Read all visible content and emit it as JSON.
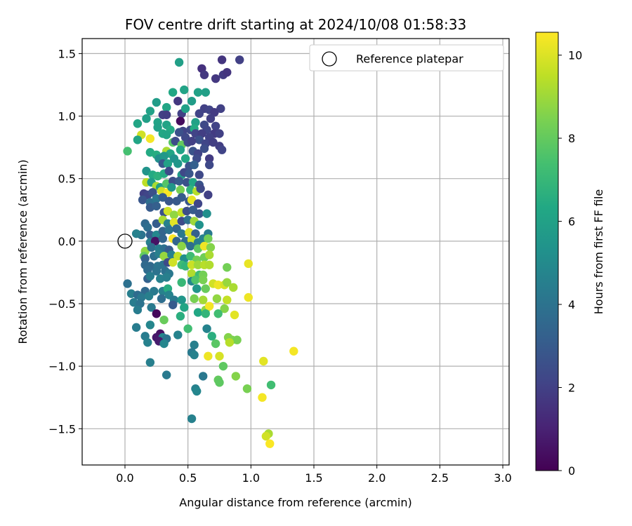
{
  "chart_data": {
    "type": "scatter",
    "title": "FOV centre drift starting at 2024/10/08 01:58:33",
    "xlabel": "Angular distance from reference (arcmin)",
    "ylabel": "Rotation from reference (arcmin)",
    "xlim": [
      -0.34,
      3.05
    ],
    "ylim": [
      -1.79,
      1.62
    ],
    "x_ticks": [
      0.0,
      0.5,
      1.0,
      1.5,
      2.0,
      2.5,
      3.0
    ],
    "x_tick_labels": [
      "0.0",
      "0.5",
      "1.0",
      "1.5",
      "2.0",
      "2.5",
      "3.0"
    ],
    "y_ticks": [
      -1.5,
      -1.0,
      -0.5,
      0.0,
      0.5,
      1.0,
      1.5
    ],
    "y_tick_labels": [
      "−1.5",
      "−1.0",
      "−0.5",
      "0.0",
      "0.5",
      "1.0",
      "1.5"
    ],
    "grid": true,
    "legend": {
      "position": "top-right",
      "entries": [
        "Reference platepar"
      ]
    },
    "reference_point": {
      "x": 0.0,
      "y": 0.0,
      "label": "Reference platepar"
    },
    "colorbar": {
      "label": "Hours from first FF file",
      "colormap": "viridis",
      "range": [
        0,
        10.55
      ],
      "ticks": [
        0,
        2,
        4,
        6,
        8,
        10
      ],
      "tick_labels": [
        "0",
        "2",
        "4",
        "6",
        "8",
        "10"
      ]
    },
    "points": [
      [
        0.43,
        1.43,
        5.9
      ],
      [
        0.77,
        1.45,
        1.6
      ],
      [
        0.91,
        1.45,
        2.0
      ],
      [
        0.61,
        1.38,
        1.5
      ],
      [
        0.63,
        1.33,
        1.7
      ],
      [
        0.78,
        1.33,
        1.8
      ],
      [
        0.81,
        1.35,
        1.6
      ],
      [
        0.72,
        1.3,
        1.7
      ],
      [
        0.47,
        1.21,
        6.1
      ],
      [
        0.38,
        1.19,
        6.3
      ],
      [
        0.58,
        1.19,
        6.0
      ],
      [
        0.64,
        1.19,
        5.9
      ],
      [
        0.25,
        1.11,
        5.8
      ],
      [
        0.42,
        1.12,
        1.7
      ],
      [
        0.53,
        1.12,
        5.8
      ],
      [
        0.33,
        1.07,
        6.2
      ],
      [
        0.2,
        1.04,
        6.0
      ],
      [
        0.3,
        1.01,
        2.0
      ],
      [
        0.33,
        1.01,
        1.9
      ],
      [
        0.45,
        1.02,
        2.0
      ],
      [
        0.48,
        1.06,
        6.0
      ],
      [
        0.63,
        1.06,
        2.0
      ],
      [
        0.67,
        1.05,
        2.1
      ],
      [
        0.76,
        1.06,
        2.0
      ],
      [
        0.71,
        1.03,
        1.8
      ],
      [
        0.17,
        0.98,
        5.9
      ],
      [
        0.59,
        1.02,
        2.1
      ],
      [
        0.68,
        0.98,
        1.9
      ],
      [
        0.26,
        0.95,
        6.1
      ],
      [
        0.1,
        0.94,
        6.2
      ],
      [
        0.26,
        0.91,
        6.0
      ],
      [
        0.33,
        0.93,
        6.1
      ],
      [
        0.44,
        0.96,
        0.3
      ],
      [
        0.56,
        0.95,
        6.0
      ],
      [
        0.63,
        0.93,
        2.3
      ],
      [
        0.72,
        0.92,
        2.1
      ],
      [
        0.36,
        0.89,
        6.4
      ],
      [
        0.46,
        0.88,
        2.1
      ],
      [
        0.52,
        0.89,
        2.3
      ],
      [
        0.55,
        0.9,
        6.4
      ],
      [
        0.65,
        0.89,
        2.2
      ],
      [
        0.71,
        0.86,
        1.8
      ],
      [
        0.75,
        0.86,
        2.0
      ],
      [
        0.3,
        0.86,
        6.3
      ],
      [
        0.33,
        0.85,
        6.2
      ],
      [
        0.43,
        0.87,
        2.6
      ],
      [
        0.56,
        0.86,
        2.1
      ],
      [
        0.61,
        0.86,
        1.9
      ],
      [
        0.13,
        0.85,
        9.8
      ],
      [
        0.2,
        0.82,
        10.4
      ],
      [
        0.1,
        0.81,
        6.2
      ],
      [
        0.48,
        0.83,
        2.3
      ],
      [
        0.59,
        0.81,
        2.6
      ],
      [
        0.67,
        0.83,
        2.0
      ],
      [
        0.38,
        0.79,
        7.8
      ],
      [
        0.4,
        0.8,
        2.4
      ],
      [
        0.45,
        0.77,
        8.0
      ],
      [
        0.5,
        0.79,
        2.4
      ],
      [
        0.53,
        0.8,
        2.0
      ],
      [
        0.64,
        0.78,
        2.2
      ],
      [
        0.7,
        0.79,
        1.9
      ],
      [
        0.75,
        0.76,
        1.9
      ],
      [
        0.77,
        0.73,
        2.1
      ],
      [
        0.02,
        0.72,
        7.4
      ],
      [
        0.2,
        0.71,
        6.4
      ],
      [
        0.25,
        0.69,
        6.5
      ],
      [
        0.33,
        0.72,
        9.2
      ],
      [
        0.36,
        0.7,
        6.2
      ],
      [
        0.44,
        0.73,
        6.1
      ],
      [
        0.54,
        0.72,
        2.7
      ],
      [
        0.58,
        0.7,
        2.1
      ],
      [
        0.63,
        0.74,
        2.5
      ],
      [
        0.27,
        0.66,
        5.2
      ],
      [
        0.31,
        0.68,
        5.6
      ],
      [
        0.39,
        0.66,
        5.3
      ],
      [
        0.48,
        0.66,
        6.3
      ],
      [
        0.57,
        0.66,
        2.4
      ],
      [
        0.67,
        0.66,
        1.8
      ],
      [
        0.3,
        0.62,
        2.9
      ],
      [
        0.34,
        0.62,
        6.0
      ],
      [
        0.42,
        0.62,
        5.5
      ],
      [
        0.51,
        0.6,
        2.6
      ],
      [
        0.55,
        0.61,
        3.2
      ],
      [
        0.67,
        0.61,
        2.3
      ],
      [
        0.17,
        0.56,
        5.4
      ],
      [
        0.22,
        0.53,
        6.4
      ],
      [
        0.26,
        0.52,
        6.7
      ],
      [
        0.31,
        0.54,
        6.4
      ],
      [
        0.35,
        0.56,
        2.4
      ],
      [
        0.45,
        0.53,
        5.7
      ],
      [
        0.47,
        0.55,
        2.3
      ],
      [
        0.51,
        0.54,
        2.8
      ],
      [
        0.59,
        0.53,
        2.3
      ],
      [
        0.17,
        0.47,
        9.5
      ],
      [
        0.21,
        0.47,
        5.8
      ],
      [
        0.25,
        0.44,
        9.2
      ],
      [
        0.28,
        0.43,
        5.9
      ],
      [
        0.33,
        0.46,
        7.7
      ],
      [
        0.38,
        0.48,
        2.5
      ],
      [
        0.43,
        0.48,
        3.0
      ],
      [
        0.49,
        0.47,
        2.6
      ],
      [
        0.54,
        0.47,
        6.2
      ],
      [
        0.59,
        0.45,
        2.7
      ],
      [
        0.15,
        0.38,
        2.0
      ],
      [
        0.18,
        0.37,
        2.2
      ],
      [
        0.22,
        0.39,
        2.6
      ],
      [
        0.29,
        0.4,
        9.8
      ],
      [
        0.34,
        0.39,
        10.5
      ],
      [
        0.37,
        0.43,
        5.5
      ],
      [
        0.44,
        0.41,
        8.4
      ],
      [
        0.52,
        0.41,
        6.8
      ],
      [
        0.57,
        0.4,
        9.4
      ],
      [
        0.6,
        0.42,
        2.3
      ],
      [
        0.66,
        0.37,
        2.0
      ],
      [
        0.14,
        0.33,
        2.8
      ],
      [
        0.2,
        0.31,
        3.8
      ],
      [
        0.25,
        0.34,
        4.1
      ],
      [
        0.3,
        0.35,
        3.1
      ],
      [
        0.35,
        0.32,
        2.8
      ],
      [
        0.41,
        0.32,
        2.9
      ],
      [
        0.45,
        0.35,
        3.0
      ],
      [
        0.51,
        0.32,
        2.8
      ],
      [
        0.53,
        0.33,
        10.2
      ],
      [
        0.58,
        0.3,
        2.2
      ],
      [
        0.2,
        0.27,
        3.0
      ],
      [
        0.25,
        0.28,
        3.2
      ],
      [
        0.31,
        0.23,
        2.6
      ],
      [
        0.34,
        0.24,
        9.8
      ],
      [
        0.39,
        0.21,
        8.8
      ],
      [
        0.45,
        0.23,
        9.6
      ],
      [
        0.49,
        0.24,
        2.5
      ],
      [
        0.54,
        0.25,
        3.0
      ],
      [
        0.59,
        0.22,
        2.8
      ],
      [
        0.65,
        0.22,
        5.2
      ],
      [
        0.16,
        0.14,
        3.6
      ],
      [
        0.18,
        0.11,
        3.8
      ],
      [
        0.25,
        0.14,
        3.1
      ],
      [
        0.3,
        0.17,
        9.2
      ],
      [
        0.34,
        0.14,
        4.6
      ],
      [
        0.39,
        0.15,
        10.1
      ],
      [
        0.45,
        0.16,
        2.4
      ],
      [
        0.5,
        0.17,
        3.9
      ],
      [
        0.55,
        0.16,
        9.0
      ],
      [
        0.59,
        0.13,
        5.3
      ],
      [
        0.13,
        0.05,
        4.0
      ],
      [
        0.2,
        0.05,
        3.2
      ],
      [
        0.25,
        0.05,
        4.9
      ],
      [
        0.3,
        0.08,
        3.4
      ],
      [
        0.35,
        0.09,
        4.0
      ],
      [
        0.41,
        0.1,
        3.5
      ],
      [
        0.45,
        0.06,
        4.2
      ],
      [
        0.51,
        0.07,
        10.0
      ],
      [
        0.56,
        0.06,
        3.2
      ],
      [
        0.66,
        0.06,
        4.3
      ],
      [
        0.09,
        0.06,
        4.6
      ],
      [
        0.2,
        -0.01,
        4.5
      ],
      [
        0.24,
        0.0,
        0.5
      ],
      [
        0.3,
        0.02,
        3.4
      ],
      [
        0.38,
        0.02,
        10.5
      ],
      [
        0.41,
        0.0,
        3.4
      ],
      [
        0.48,
        0.0,
        3.7
      ],
      [
        0.53,
        0.01,
        9.7
      ],
      [
        0.58,
        -0.01,
        4.4
      ],
      [
        0.62,
        0.02,
        4.6
      ],
      [
        0.66,
        0.02,
        8.3
      ],
      [
        0.16,
        -0.08,
        8.8
      ],
      [
        0.21,
        -0.05,
        3.8
      ],
      [
        0.27,
        -0.06,
        4.4
      ],
      [
        0.31,
        -0.06,
        3.9
      ],
      [
        0.35,
        -0.07,
        3.1
      ],
      [
        0.45,
        -0.04,
        8.7
      ],
      [
        0.52,
        -0.04,
        3.8
      ],
      [
        0.58,
        -0.06,
        7.9
      ],
      [
        0.63,
        -0.04,
        10.3
      ],
      [
        0.68,
        -0.05,
        8.6
      ],
      [
        0.15,
        -0.12,
        8.0
      ],
      [
        0.16,
        -0.14,
        3.2
      ],
      [
        0.23,
        -0.12,
        3.9
      ],
      [
        0.27,
        -0.1,
        4.5
      ],
      [
        0.31,
        -0.12,
        8.9
      ],
      [
        0.37,
        -0.11,
        4.6
      ],
      [
        0.42,
        -0.12,
        9.6
      ],
      [
        0.47,
        -0.14,
        5.2
      ],
      [
        0.52,
        -0.12,
        7.2
      ],
      [
        0.57,
        -0.15,
        8.3
      ],
      [
        0.63,
        -0.13,
        8.2
      ],
      [
        0.67,
        -0.11,
        9.2
      ],
      [
        0.16,
        -0.19,
        3.6
      ],
      [
        0.2,
        -0.2,
        3.6
      ],
      [
        0.26,
        -0.2,
        4.1
      ],
      [
        0.3,
        -0.19,
        4.0
      ],
      [
        0.34,
        -0.17,
        2.4
      ],
      [
        0.38,
        -0.17,
        9.8
      ],
      [
        0.45,
        -0.19,
        7.2
      ],
      [
        0.48,
        -0.2,
        6.9
      ],
      [
        0.53,
        -0.19,
        9.7
      ],
      [
        0.58,
        -0.19,
        9.0
      ],
      [
        0.63,
        -0.19,
        9.4
      ],
      [
        0.67,
        -0.19,
        9.3
      ],
      [
        0.81,
        -0.21,
        8.3
      ],
      [
        0.98,
        -0.18,
        10.2
      ],
      [
        0.18,
        -0.23,
        3.7
      ],
      [
        0.25,
        -0.24,
        4.0
      ],
      [
        0.32,
        -0.24,
        3.9
      ],
      [
        0.35,
        -0.26,
        4.2
      ],
      [
        0.53,
        -0.26,
        9.3
      ],
      [
        0.59,
        -0.27,
        7.2
      ],
      [
        0.62,
        -0.27,
        8.3
      ],
      [
        0.18,
        -0.3,
        3.3
      ],
      [
        0.2,
        -0.28,
        4.4
      ],
      [
        0.28,
        -0.3,
        4.6
      ],
      [
        0.33,
        -0.29,
        4.5
      ],
      [
        0.45,
        -0.33,
        7.0
      ],
      [
        0.53,
        -0.32,
        4.8
      ],
      [
        0.56,
        -0.31,
        7.6
      ],
      [
        0.62,
        -0.31,
        8.4
      ],
      [
        0.7,
        -0.34,
        9.8
      ],
      [
        0.74,
        -0.35,
        10.3
      ],
      [
        0.79,
        -0.35,
        9.9
      ],
      [
        0.81,
        -0.33,
        8.9
      ],
      [
        0.86,
        -0.37,
        9.2
      ],
      [
        0.57,
        -0.38,
        5.5
      ],
      [
        0.64,
        -0.38,
        8.1
      ],
      [
        0.16,
        -0.4,
        3.6
      ],
      [
        0.23,
        -0.4,
        4.3
      ],
      [
        0.3,
        -0.4,
        4.6
      ],
      [
        0.34,
        -0.38,
        6.5
      ],
      [
        0.35,
        -0.43,
        4.7
      ],
      [
        0.02,
        -0.34,
        3.9
      ],
      [
        0.05,
        -0.42,
        4.5
      ],
      [
        0.1,
        -0.43,
        3.7
      ],
      [
        0.13,
        -0.45,
        4.2
      ],
      [
        0.19,
        -0.44,
        4.5
      ],
      [
        0.29,
        -0.46,
        3.8
      ],
      [
        0.39,
        -0.47,
        4.3
      ],
      [
        0.45,
        -0.47,
        5.5
      ],
      [
        0.55,
        -0.46,
        8.4
      ],
      [
        0.62,
        -0.47,
        9.1
      ],
      [
        0.73,
        -0.46,
        8.8
      ],
      [
        0.81,
        -0.47,
        9.6
      ],
      [
        0.98,
        -0.45,
        10.3
      ],
      [
        0.07,
        -0.49,
        4.4
      ],
      [
        0.12,
        -0.5,
        4.0
      ],
      [
        0.21,
        -0.53,
        4.3
      ],
      [
        0.38,
        -0.51,
        3.0
      ],
      [
        0.47,
        -0.53,
        6.2
      ],
      [
        0.58,
        -0.57,
        6.3
      ],
      [
        0.64,
        -0.55,
        8.8
      ],
      [
        0.67,
        -0.52,
        10.4
      ],
      [
        0.79,
        -0.54,
        8.6
      ],
      [
        0.1,
        -0.55,
        4.4
      ],
      [
        0.25,
        -0.58,
        0.2
      ],
      [
        0.44,
        -0.6,
        6.6
      ],
      [
        0.64,
        -0.58,
        6.9
      ],
      [
        0.74,
        -0.58,
        7.3
      ],
      [
        0.87,
        -0.59,
        10.1
      ],
      [
        0.31,
        -0.63,
        8.1
      ],
      [
        0.09,
        -0.69,
        4.4
      ],
      [
        0.2,
        -0.67,
        4.8
      ],
      [
        0.28,
        -0.74,
        0.5
      ],
      [
        0.5,
        -0.7,
        7.3
      ],
      [
        0.65,
        -0.7,
        4.7
      ],
      [
        0.16,
        -0.76,
        4.4
      ],
      [
        0.25,
        -0.77,
        0.7
      ],
      [
        0.3,
        -0.77,
        4.8
      ],
      [
        0.33,
        -0.78,
        4.0
      ],
      [
        0.42,
        -0.75,
        4.7
      ],
      [
        0.69,
        -0.76,
        6.6
      ],
      [
        0.82,
        -0.77,
        8.6
      ],
      [
        0.18,
        -0.81,
        4.6
      ],
      [
        0.27,
        -0.8,
        0.8
      ],
      [
        0.31,
        -0.82,
        4.8
      ],
      [
        0.55,
        -0.83,
        4.5
      ],
      [
        0.72,
        -0.82,
        7.8
      ],
      [
        0.85,
        -0.79,
        8.5
      ],
      [
        0.89,
        -0.79,
        8.4
      ],
      [
        0.83,
        -0.81,
        9.4
      ],
      [
        1.34,
        -0.88,
        10.4
      ],
      [
        0.53,
        -0.89,
        4.3
      ],
      [
        0.55,
        -0.91,
        4.6
      ],
      [
        0.66,
        -0.92,
        10.3
      ],
      [
        0.75,
        -0.92,
        9.9
      ],
      [
        1.1,
        -0.96,
        10.1
      ],
      [
        0.2,
        -0.97,
        4.5
      ],
      [
        0.78,
        -1.0,
        7.9
      ],
      [
        0.33,
        -1.07,
        4.3
      ],
      [
        0.62,
        -1.08,
        4.2
      ],
      [
        0.88,
        -1.08,
        8.6
      ],
      [
        0.74,
        -1.11,
        8.0
      ],
      [
        0.75,
        -1.13,
        7.9
      ],
      [
        1.16,
        -1.15,
        7.3
      ],
      [
        0.97,
        -1.18,
        8.4
      ],
      [
        0.56,
        -1.18,
        4.6
      ],
      [
        0.57,
        -1.2,
        4.8
      ],
      [
        1.09,
        -1.25,
        10.4
      ],
      [
        0.53,
        -1.42,
        4.6
      ],
      [
        1.14,
        -1.54,
        9.2
      ],
      [
        1.12,
        -1.56,
        9.8
      ],
      [
        1.15,
        -1.62,
        10.5
      ]
    ]
  }
}
